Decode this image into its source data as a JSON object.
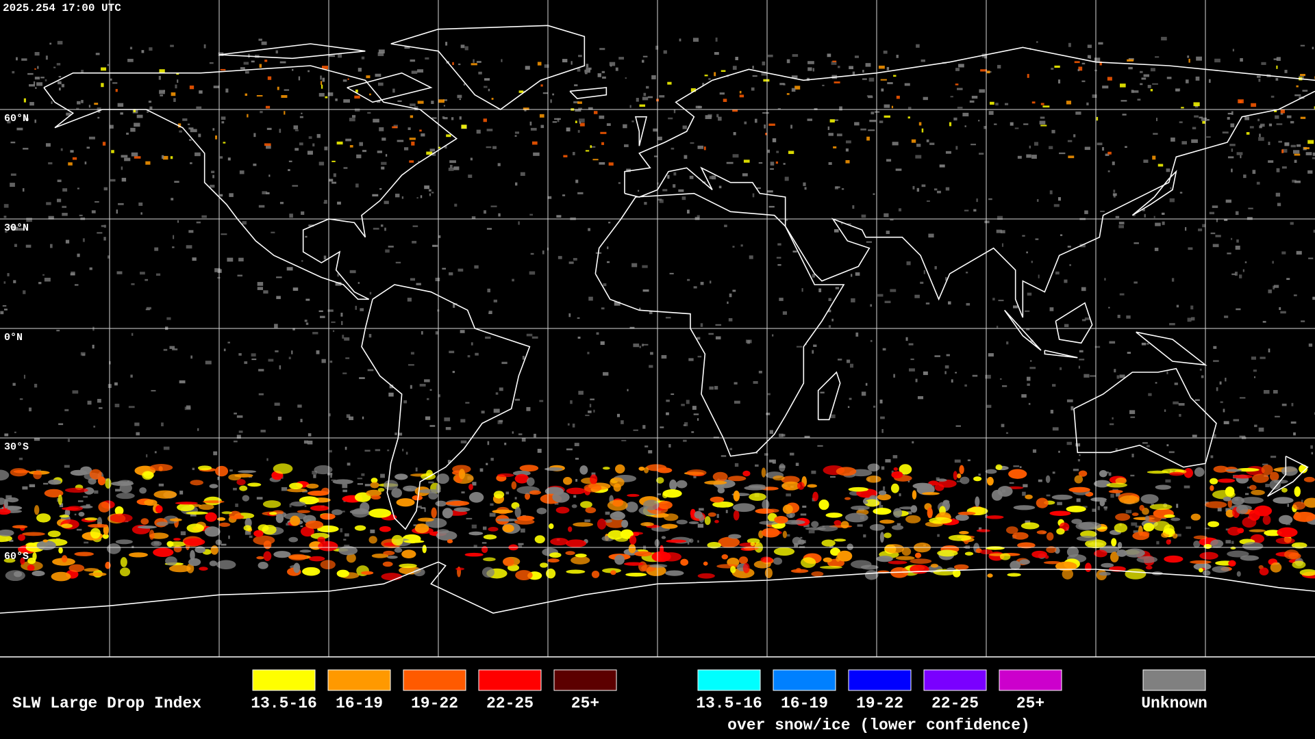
{
  "timestamp": "2025.254 17:00 UTC",
  "map": {
    "latitude_labels": [
      "60°N",
      "30°N",
      "0°N",
      "30°S",
      "60°S"
    ]
  },
  "legend": {
    "title": "SLW Large Drop Index",
    "categories": [
      {
        "label": "13.5-16",
        "color": "#ffff00"
      },
      {
        "label": "16-19",
        "color": "#ff9900"
      },
      {
        "label": "19-22",
        "color": "#ff5a00"
      },
      {
        "label": "22-25",
        "color": "#ff0000"
      },
      {
        "label": "25+",
        "color": "#5c0000"
      }
    ],
    "snow_categories": [
      {
        "label": "13.5-16",
        "color": "#00ffff"
      },
      {
        "label": "16-19",
        "color": "#0080ff"
      },
      {
        "label": "19-22",
        "color": "#0000ff"
      },
      {
        "label": "22-25",
        "color": "#7a00ff"
      },
      {
        "label": "25+",
        "color": "#cc00cc"
      }
    ],
    "snow_caption": "over snow/ice (lower confidence)",
    "unknown": {
      "label": "Unknown",
      "color": "#808080"
    }
  }
}
